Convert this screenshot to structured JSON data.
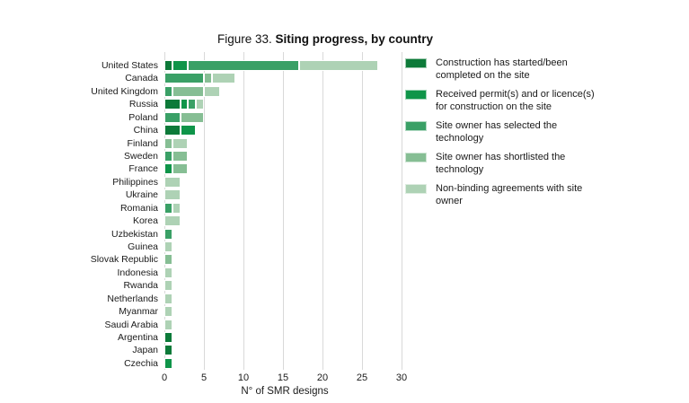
{
  "title": {
    "prefix": "Figure 33. ",
    "label": "Siting progress, by country"
  },
  "x_axis": {
    "label": "N° of SMR designs",
    "ticks": [
      0,
      5,
      10,
      15,
      20,
      25,
      30
    ]
  },
  "legend": {
    "items": [
      {
        "label": "Construction has started/been\ncompleted on the site",
        "color": "#0d7a39"
      },
      {
        "label": "Received permit(s) and or licence(s)\nfor construction on the site",
        "color": "#0f9549"
      },
      {
        "label": "Site owner has selected the\ntechnology",
        "color": "#3aa066"
      },
      {
        "label": "Site owner has shortlisted the\ntechnology",
        "color": "#86be94"
      },
      {
        "label": "Non-binding agreements with site\nowner",
        "color": "#aed2b5"
      }
    ]
  },
  "chart_data": {
    "type": "bar",
    "orientation": "horizontal",
    "stacked": true,
    "title": "Figure 33. Siting progress, by country",
    "xlabel": "N° of SMR designs",
    "ylabel": "",
    "xlim": [
      0,
      30
    ],
    "xticks": [
      0,
      5,
      10,
      15,
      20,
      25,
      30
    ],
    "grid": "vertical",
    "legend_position": "right",
    "categories": [
      "United States",
      "Canada",
      "United Kingdom",
      "Russia",
      "Poland",
      "China",
      "Finland",
      "Sweden",
      "France",
      "Philippines",
      "Ukraine",
      "Romania",
      "Korea",
      "Uzbekistan",
      "Guinea",
      "Slovak Republic",
      "Indonesia",
      "Rwanda",
      "Netherlands",
      "Myanmar",
      "Saudi Arabia",
      "Argentina",
      "Japan",
      "Czechia"
    ],
    "series": [
      {
        "name": "Construction has started/been completed on the site",
        "color": "#0d7a39",
        "values": [
          1,
          0,
          0,
          2,
          0,
          2,
          0,
          0,
          0,
          0,
          0,
          0,
          0,
          0,
          0,
          0,
          0,
          0,
          0,
          0,
          0,
          1,
          1,
          0
        ]
      },
      {
        "name": "Received permit(s) and or licence(s) for construction on the site",
        "color": "#0f9549",
        "values": [
          2,
          0,
          0,
          1,
          0,
          2,
          0,
          0,
          1,
          0,
          0,
          0,
          0,
          0,
          0,
          0,
          0,
          0,
          0,
          0,
          0,
          0,
          0,
          1
        ]
      },
      {
        "name": "Site owner has selected the technology",
        "color": "#3aa066",
        "values": [
          14,
          5,
          1,
          1,
          2,
          0,
          0,
          1,
          0,
          0,
          0,
          1,
          0,
          1,
          0,
          0,
          0,
          0,
          0,
          0,
          0,
          0,
          0,
          0
        ]
      },
      {
        "name": "Site owner has shortlisted the technology",
        "color": "#86be94",
        "values": [
          0,
          1,
          4,
          0,
          3,
          0,
          1,
          2,
          2,
          0,
          0,
          0,
          0,
          0,
          0,
          1,
          0,
          0,
          0,
          0,
          0,
          0,
          0,
          0
        ]
      },
      {
        "name": "Non-binding agreements with site owner",
        "color": "#aed2b5",
        "values": [
          10,
          3,
          2,
          1,
          0,
          0,
          2,
          0,
          0,
          2,
          2,
          1,
          2,
          0,
          1,
          0,
          1,
          1,
          1,
          1,
          1,
          0,
          0,
          0
        ]
      }
    ],
    "totals": [
      27,
      9,
      7,
      5,
      5,
      4,
      3,
      3,
      3,
      2,
      2,
      2,
      2,
      1,
      1,
      1,
      1,
      1,
      1,
      1,
      1,
      1,
      1,
      1
    ]
  }
}
